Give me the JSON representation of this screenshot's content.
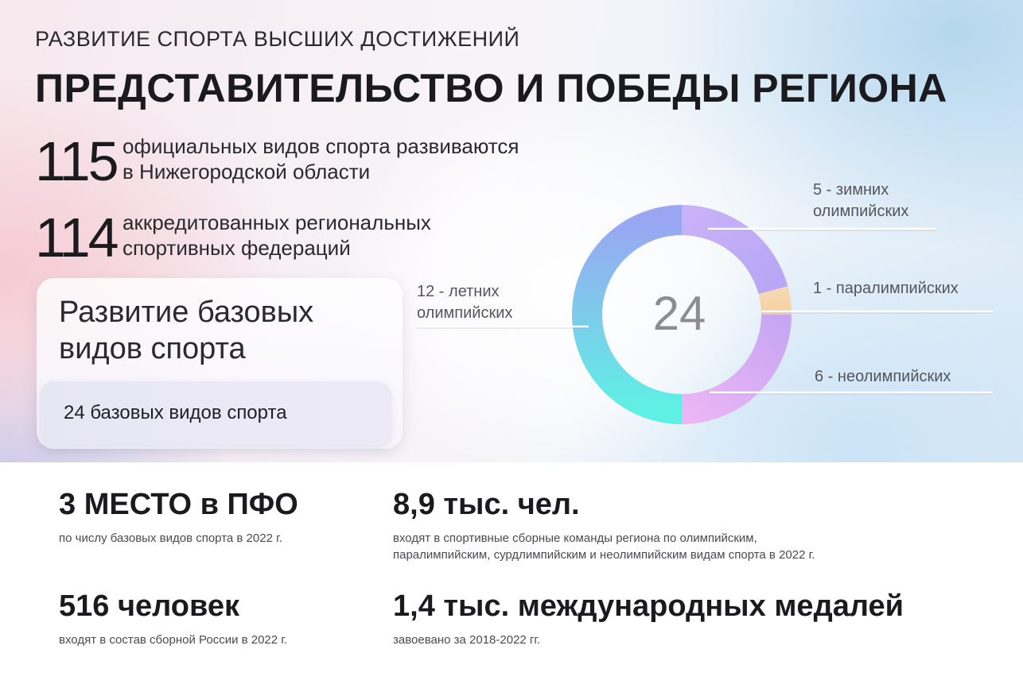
{
  "header": {
    "eyebrow": "РАЗВИТИЕ СПОРТА ВЫСШИХ ДОСТИЖЕНИЙ",
    "title": "ПРЕДСТАВИТЕЛЬСТВО И ПОБЕДЫ РЕГИОНА"
  },
  "stats": [
    {
      "value": "115",
      "line1": "официальных видов спорта развиваются",
      "line2": "в Нижегородской области"
    },
    {
      "value": "114",
      "line1": "аккредитованных региональных",
      "line2": "спортивных федераций"
    }
  ],
  "panel": {
    "title_line1": "Развитие базовых",
    "title_line2": "видов спорта",
    "chip": "24 базовых видов спорта"
  },
  "chart_data": {
    "type": "pie",
    "title": "",
    "center_label": "24",
    "slices": [
      {
        "value": 5,
        "label_line1": "5 - зимних",
        "label_line2": "олимпийских",
        "color_start": "#b8a6f6",
        "color_end": "#c9b2f7"
      },
      {
        "value": 1,
        "label_line1": "1 - паралимпийских",
        "label_line2": "",
        "color_start": "#f7cf9f",
        "color_end": "#f5d9b6"
      },
      {
        "value": 6,
        "label_line1": "6 - неолимпийских",
        "label_line2": "",
        "color_start": "#ecb6f4",
        "color_end": "#c7a6f3"
      },
      {
        "value": 12,
        "label_line1": "12 - летних",
        "label_line2": "олимпийских",
        "color_start": "#9aa6f2",
        "color_end": "#5ff0e4"
      }
    ],
    "start_angle_deg": 0,
    "direction": "clockwise"
  },
  "facts": [
    {
      "value": "3 МЕСТО в ПФО",
      "line1": "по числу базовых видов спорта в 2022 г.",
      "line2": ""
    },
    {
      "value": "8,9 тыс. чел.",
      "line1": "входят в спортивные сборные команды региона по олимпийским,",
      "line2": "паралимпийским, сурдлимпийским и неолимпийским видам спорта в 2022 г."
    },
    {
      "value": "516 человек",
      "line1": "входят в состав сборной России в 2022 г.",
      "line2": ""
    },
    {
      "value": "1,4 тыс. международных медалей",
      "line1": "завоевано за 2018-2022 гг.",
      "line2": ""
    }
  ]
}
